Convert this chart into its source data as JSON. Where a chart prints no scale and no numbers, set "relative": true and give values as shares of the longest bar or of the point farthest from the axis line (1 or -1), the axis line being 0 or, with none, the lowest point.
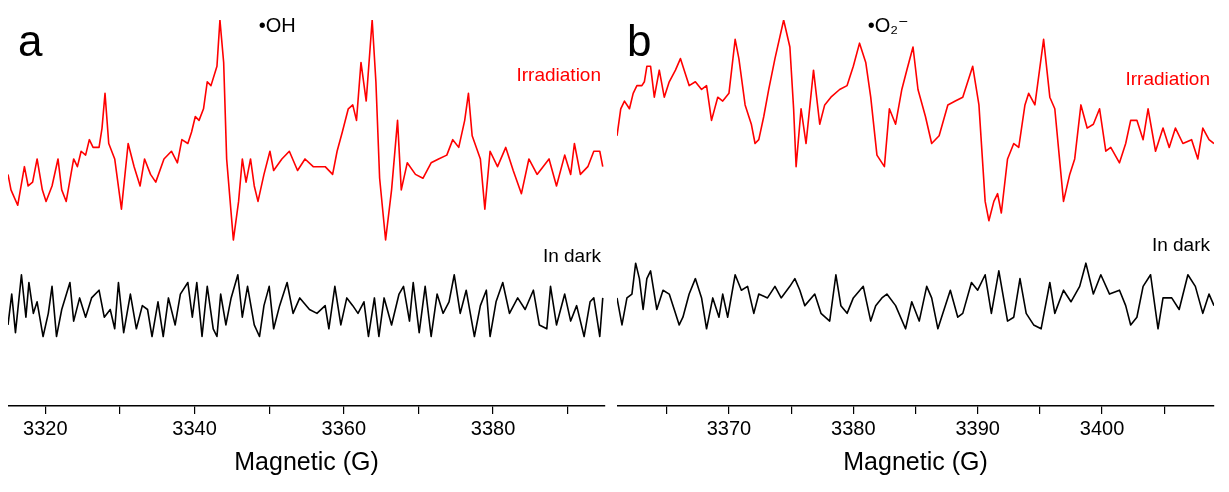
{
  "chart_data": [
    {
      "type": "line",
      "title": "a",
      "xlabel": "Magnetic (G)",
      "annotations": [
        "•OH"
      ],
      "relative": true,
      "legend": false,
      "grid": false,
      "marker": "none",
      "line_style": "solid",
      "xlim": [
        3315,
        3395
      ],
      "xticks": [
        3320,
        {
          "value": 3330,
          "label": null
        },
        3340,
        {
          "value": 3350,
          "label": null
        },
        3360,
        {
          "value": 3370,
          "label": null
        },
        3380,
        {
          "value": 3390,
          "label": null
        }
      ],
      "series": [
        {
          "name": "Irradiation",
          "color": "#ff0000",
          "x": [
            3315.0,
            3315.4,
            3316.3,
            3317.2,
            3317.7,
            3318.3,
            3318.9,
            3319.6,
            3320.1,
            3320.9,
            3321.7,
            3322.2,
            3322.8,
            3323.8,
            3324.3,
            3324.8,
            3325.4,
            3325.9,
            3326.4,
            3327.2,
            3327.6,
            3328.0,
            3328.5,
            3329.3,
            3330.2,
            3331.1,
            3331.9,
            3332.7,
            3333.3,
            3334.1,
            3334.8,
            3335.9,
            3336.9,
            3337.7,
            3338.3,
            3339.1,
            3339.6,
            3340.1,
            3340.6,
            3341.2,
            3341.7,
            3342.2,
            3343.0,
            3343.4,
            3343.9,
            3344.3,
            3345.2,
            3345.9,
            3346.4,
            3346.9,
            3347.5,
            3348.0,
            3348.5,
            3349.3,
            3350.1,
            3350.6,
            3351.7,
            3352.7,
            3353.8,
            3354.8,
            3355.9,
            3357.5,
            3358.5,
            3359.1,
            3359.8,
            3360.6,
            3361.2,
            3361.7,
            3362.3,
            3363.0,
            3363.8,
            3364.3,
            3364.8,
            3365.6,
            3366.4,
            3367.2,
            3367.7,
            3368.5,
            3369.6,
            3370.6,
            3371.7,
            3372.7,
            3373.8,
            3374.6,
            3375.4,
            3376.2,
            3376.7,
            3377.2,
            3378.3,
            3378.9,
            3379.6,
            3380.6,
            3381.7,
            3382.7,
            3383.8,
            3384.8,
            3385.9,
            3387.5,
            3388.5,
            3389.6,
            3390.4,
            3390.9,
            3391.7,
            3392.7,
            3393.5,
            3394.3,
            3394.7
          ],
          "values": [
            0.6,
            0.56,
            0.52,
            0.62,
            0.57,
            0.58,
            0.64,
            0.56,
            0.53,
            0.57,
            0.64,
            0.56,
            0.53,
            0.64,
            0.62,
            0.66,
            0.65,
            0.69,
            0.67,
            0.67,
            0.72,
            0.81,
            0.68,
            0.64,
            0.51,
            0.68,
            0.62,
            0.57,
            0.64,
            0.6,
            0.58,
            0.64,
            0.66,
            0.63,
            0.69,
            0.68,
            0.71,
            0.75,
            0.74,
            0.77,
            0.84,
            0.83,
            0.88,
            1.0,
            0.89,
            0.64,
            0.43,
            0.53,
            0.64,
            0.58,
            0.64,
            0.57,
            0.53,
            0.6,
            0.66,
            0.61,
            0.64,
            0.66,
            0.61,
            0.64,
            0.62,
            0.62,
            0.6,
            0.66,
            0.71,
            0.77,
            0.78,
            0.74,
            0.89,
            0.79,
            1.0,
            0.84,
            0.59,
            0.43,
            0.56,
            0.74,
            0.56,
            0.63,
            0.6,
            0.59,
            0.63,
            0.64,
            0.65,
            0.69,
            0.67,
            0.74,
            0.81,
            0.7,
            0.64,
            0.51,
            0.66,
            0.62,
            0.67,
            0.61,
            0.55,
            0.64,
            0.6,
            0.64,
            0.57,
            0.65,
            0.6,
            0.68,
            0.6,
            0.62,
            0.66,
            0.66,
            0.62
          ]
        },
        {
          "name": "In dark",
          "color": "#000000",
          "x": [
            3315.0,
            3315.5,
            3316.0,
            3316.8,
            3317.4,
            3317.8,
            3318.4,
            3318.9,
            3319.7,
            3320.4,
            3320.9,
            3321.5,
            3322.2,
            3323.3,
            3323.8,
            3324.6,
            3325.4,
            3326.2,
            3327.2,
            3327.9,
            3328.7,
            3329.3,
            3329.8,
            3330.5,
            3331.4,
            3332.2,
            3333.0,
            3333.7,
            3334.3,
            3335.1,
            3335.8,
            3336.5,
            3337.4,
            3338.1,
            3339.1,
            3339.7,
            3340.3,
            3341.0,
            3341.7,
            3342.5,
            3343.0,
            3343.5,
            3344.2,
            3344.9,
            3345.8,
            3346.4,
            3347.1,
            3348.0,
            3348.7,
            3349.3,
            3350.0,
            3350.6,
            3351.4,
            3352.4,
            3353.2,
            3354.1,
            3355.4,
            3356.4,
            3357.5,
            3358.0,
            3358.8,
            3359.6,
            3360.4,
            3361.2,
            3361.9,
            3362.7,
            3363.3,
            3364.1,
            3364.7,
            3365.4,
            3366.4,
            3367.4,
            3368.0,
            3368.8,
            3369.3,
            3370.1,
            3370.9,
            3371.7,
            3372.5,
            3373.3,
            3374.1,
            3374.8,
            3375.6,
            3376.4,
            3377.5,
            3378.3,
            3379.1,
            3379.6,
            3380.4,
            3381.3,
            3382.2,
            3383.3,
            3384.3,
            3385.4,
            3386.2,
            3387.2,
            3387.7,
            3388.5,
            3389.6,
            3390.4,
            3391.2,
            3392.2,
            3393.0,
            3393.5,
            3394.3,
            3394.7
          ],
          "values": [
            0.21,
            0.29,
            0.19,
            0.34,
            0.23,
            0.32,
            0.24,
            0.27,
            0.18,
            0.24,
            0.31,
            0.18,
            0.25,
            0.32,
            0.22,
            0.28,
            0.23,
            0.28,
            0.3,
            0.23,
            0.25,
            0.2,
            0.32,
            0.19,
            0.29,
            0.2,
            0.26,
            0.25,
            0.18,
            0.27,
            0.18,
            0.28,
            0.21,
            0.29,
            0.32,
            0.23,
            0.32,
            0.18,
            0.31,
            0.2,
            0.18,
            0.29,
            0.21,
            0.28,
            0.34,
            0.23,
            0.31,
            0.21,
            0.18,
            0.26,
            0.31,
            0.2,
            0.26,
            0.32,
            0.24,
            0.28,
            0.25,
            0.24,
            0.26,
            0.2,
            0.31,
            0.21,
            0.28,
            0.26,
            0.24,
            0.27,
            0.18,
            0.28,
            0.18,
            0.28,
            0.21,
            0.29,
            0.31,
            0.22,
            0.32,
            0.19,
            0.31,
            0.18,
            0.29,
            0.24,
            0.27,
            0.34,
            0.24,
            0.3,
            0.18,
            0.26,
            0.3,
            0.18,
            0.27,
            0.32,
            0.24,
            0.28,
            0.25,
            0.3,
            0.21,
            0.2,
            0.31,
            0.21,
            0.29,
            0.22,
            0.26,
            0.18,
            0.27,
            0.28,
            0.18,
            0.28
          ]
        }
      ]
    },
    {
      "type": "line",
      "title": "b",
      "xlabel": "Magnetic (G)",
      "annotations": [
        "•O₂⁻"
      ],
      "relative": true,
      "legend": false,
      "grid": false,
      "marker": "none",
      "line_style": "solid",
      "xlim": [
        3361,
        3409
      ],
      "xticks": [
        {
          "value": 3365,
          "label": null
        },
        3370,
        {
          "value": 3375,
          "label": null
        },
        3380,
        {
          "value": 3385,
          "label": null
        },
        3390,
        {
          "value": 3395,
          "label": null
        },
        3400,
        {
          "value": 3405,
          "label": null
        }
      ],
      "series": [
        {
          "name": "Irradiation",
          "color": "#ff0000",
          "x": [
            3361.0,
            3361.3,
            3361.6,
            3362.0,
            3362.3,
            3362.6,
            3363.0,
            3363.2,
            3363.4,
            3363.7,
            3364.0,
            3364.4,
            3364.8,
            3365.2,
            3365.7,
            3366.1,
            3366.5,
            3366.8,
            3367.3,
            3367.8,
            3368.2,
            3368.6,
            3369.1,
            3369.5,
            3370.0,
            3370.5,
            3370.8,
            3371.3,
            3371.8,
            3372.1,
            3372.4,
            3372.8,
            3373.2,
            3373.7,
            3374.4,
            3374.9,
            3375.2,
            3375.4,
            3375.8,
            3376.2,
            3376.8,
            3377.3,
            3377.7,
            3378.2,
            3378.9,
            3379.5,
            3380.0,
            3380.5,
            3381.0,
            3381.4,
            3381.9,
            3382.5,
            3382.9,
            3383.4,
            3383.9,
            3384.3,
            3384.8,
            3385.2,
            3385.8,
            3386.3,
            3386.9,
            3387.6,
            3388.2,
            3388.8,
            3389.6,
            3390.1,
            3390.6,
            3390.9,
            3391.3,
            3391.6,
            3391.9,
            3392.4,
            3392.9,
            3393.3,
            3393.8,
            3394.1,
            3394.6,
            3395.3,
            3395.8,
            3396.2,
            3396.9,
            3397.4,
            3397.8,
            3398.3,
            3398.8,
            3399.3,
            3399.8,
            3400.3,
            3400.7,
            3401.4,
            3401.9,
            3402.3,
            3402.8,
            3403.3,
            3403.7,
            3404.3,
            3404.9,
            3405.4,
            3405.9,
            3406.5,
            3407.2,
            3407.7,
            3408.1,
            3408.6,
            3409.0
          ],
          "values": [
            0.7,
            0.77,
            0.79,
            0.77,
            0.81,
            0.83,
            0.83,
            0.84,
            0.88,
            0.88,
            0.8,
            0.87,
            0.8,
            0.84,
            0.87,
            0.9,
            0.86,
            0.83,
            0.84,
            0.82,
            0.83,
            0.74,
            0.8,
            0.79,
            0.81,
            0.95,
            0.9,
            0.78,
            0.73,
            0.68,
            0.69,
            0.75,
            0.82,
            0.9,
            1.0,
            0.93,
            0.77,
            0.62,
            0.77,
            0.68,
            0.87,
            0.73,
            0.78,
            0.8,
            0.82,
            0.83,
            0.88,
            0.94,
            0.89,
            0.8,
            0.65,
            0.62,
            0.77,
            0.73,
            0.82,
            0.87,
            0.93,
            0.82,
            0.75,
            0.68,
            0.7,
            0.78,
            0.79,
            0.8,
            0.88,
            0.78,
            0.53,
            0.48,
            0.53,
            0.55,
            0.5,
            0.64,
            0.68,
            0.67,
            0.78,
            0.81,
            0.78,
            0.95,
            0.8,
            0.77,
            0.53,
            0.6,
            0.64,
            0.78,
            0.72,
            0.73,
            0.77,
            0.66,
            0.67,
            0.63,
            0.68,
            0.74,
            0.74,
            0.69,
            0.77,
            0.66,
            0.72,
            0.67,
            0.72,
            0.68,
            0.69,
            0.64,
            0.72,
            0.69,
            0.68
          ]
        },
        {
          "name": "In dark",
          "color": "#000000",
          "x": [
            3361.0,
            3361.4,
            3361.8,
            3362.2,
            3362.5,
            3362.8,
            3363.1,
            3363.4,
            3363.7,
            3363.9,
            3364.2,
            3364.7,
            3365.2,
            3365.7,
            3366.0,
            3366.3,
            3366.8,
            3367.3,
            3367.8,
            3368.2,
            3368.7,
            3369.2,
            3369.5,
            3369.9,
            3370.5,
            3371.0,
            3371.5,
            3372.0,
            3372.4,
            3373.1,
            3373.7,
            3374.2,
            3374.9,
            3375.3,
            3375.7,
            3376.1,
            3376.9,
            3377.4,
            3378.1,
            3378.6,
            3379.0,
            3379.5,
            3380.0,
            3380.8,
            3381.4,
            3381.8,
            3382.3,
            3382.7,
            3383.4,
            3384.2,
            3384.7,
            3385.3,
            3385.9,
            3386.3,
            3386.8,
            3387.2,
            3387.8,
            3388.4,
            3388.8,
            3389.5,
            3390.0,
            3390.6,
            3391.1,
            3391.7,
            3392.4,
            3392.9,
            3393.4,
            3393.9,
            3394.5,
            3395.1,
            3395.8,
            3396.2,
            3396.9,
            3397.5,
            3398.2,
            3398.7,
            3399.3,
            3399.9,
            3400.6,
            3401.4,
            3401.9,
            3402.3,
            3402.8,
            3403.3,
            3403.9,
            3404.5,
            3404.9,
            3405.6,
            3406.2,
            3406.9,
            3407.5,
            3408.1,
            3408.6,
            3409.0
          ],
          "values": [
            0.28,
            0.21,
            0.28,
            0.29,
            0.37,
            0.33,
            0.25,
            0.33,
            0.35,
            0.31,
            0.25,
            0.3,
            0.29,
            0.24,
            0.21,
            0.23,
            0.29,
            0.33,
            0.28,
            0.2,
            0.28,
            0.23,
            0.29,
            0.23,
            0.34,
            0.3,
            0.31,
            0.24,
            0.29,
            0.28,
            0.31,
            0.28,
            0.31,
            0.33,
            0.3,
            0.26,
            0.29,
            0.24,
            0.22,
            0.34,
            0.26,
            0.24,
            0.28,
            0.31,
            0.22,
            0.26,
            0.28,
            0.29,
            0.26,
            0.2,
            0.27,
            0.22,
            0.31,
            0.28,
            0.2,
            0.24,
            0.3,
            0.23,
            0.24,
            0.32,
            0.3,
            0.34,
            0.24,
            0.35,
            0.22,
            0.23,
            0.33,
            0.24,
            0.21,
            0.2,
            0.32,
            0.24,
            0.3,
            0.27,
            0.31,
            0.37,
            0.29,
            0.34,
            0.29,
            0.3,
            0.26,
            0.21,
            0.23,
            0.31,
            0.34,
            0.2,
            0.28,
            0.28,
            0.25,
            0.34,
            0.31,
            0.24,
            0.29,
            0.26
          ]
        }
      ]
    }
  ]
}
